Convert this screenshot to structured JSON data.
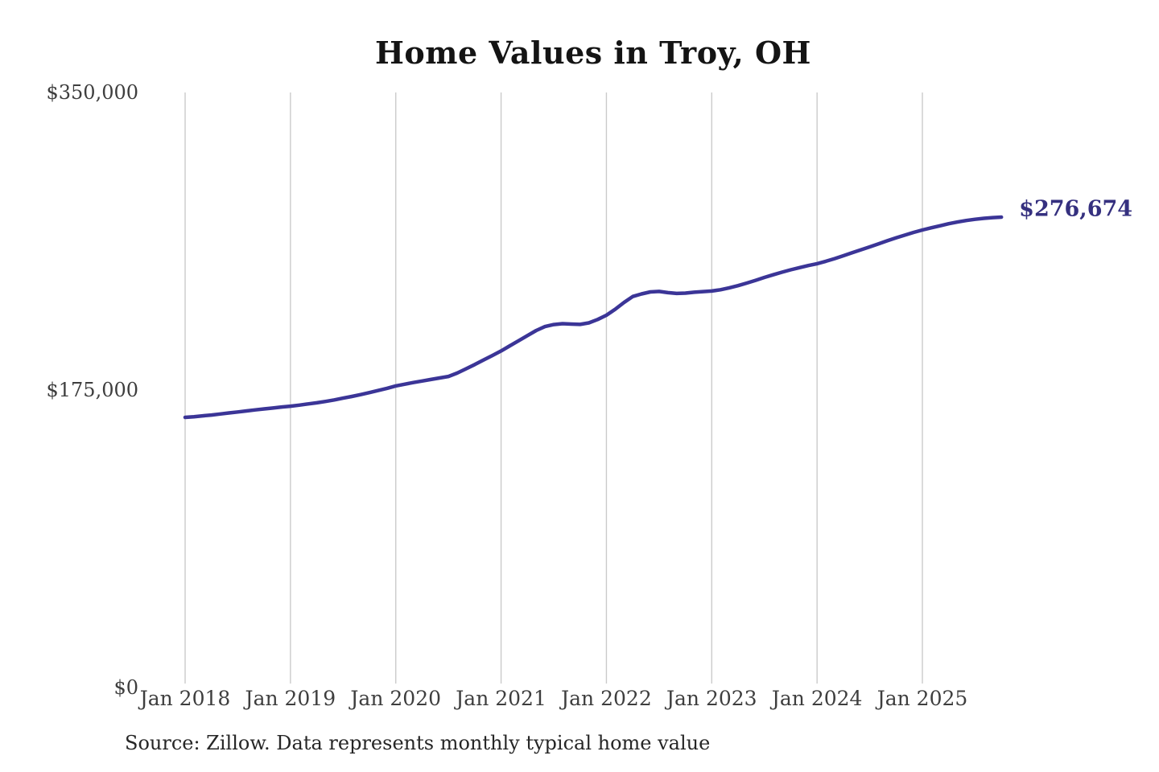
{
  "chart": {
    "title": "Home Values in Troy, OH",
    "source_note": "Source: Zillow. Data represents monthly typical home value",
    "end_value_label": "$276,674",
    "colors": {
      "line": "#3b3597",
      "end_label": "#35307f",
      "gridline": "#cbcbcb",
      "title_text": "#141414",
      "axis_text": "#3e3e3e",
      "source_text": "#262626",
      "background": "#ffffff"
    }
  },
  "chart_data": {
    "type": "line",
    "title": "Home Values in Troy, OH",
    "series_name": "Monthly typical home value (USD)",
    "legend": "none",
    "grid": "vertical-only",
    "ylim": [
      0,
      350000
    ],
    "y_ticks": [
      {
        "label": "$0",
        "value": 0
      },
      {
        "label": "$175,000",
        "value": 175000
      },
      {
        "label": "$350,000",
        "value": 350000
      }
    ],
    "x_ticks": [
      "Jan 2018",
      "Jan 2019",
      "Jan 2020",
      "Jan 2021",
      "Jan 2022",
      "Jan 2023",
      "Jan 2024",
      "Jan 2025"
    ],
    "end_label": "$276,674",
    "x": [
      "2018-01",
      "2018-02",
      "2018-03",
      "2018-04",
      "2018-05",
      "2018-06",
      "2018-07",
      "2018-08",
      "2018-09",
      "2018-10",
      "2018-11",
      "2018-12",
      "2019-01",
      "2019-02",
      "2019-03",
      "2019-04",
      "2019-05",
      "2019-06",
      "2019-07",
      "2019-08",
      "2019-09",
      "2019-10",
      "2019-11",
      "2019-12",
      "2020-01",
      "2020-02",
      "2020-03",
      "2020-04",
      "2020-05",
      "2020-06",
      "2020-07",
      "2020-08",
      "2020-09",
      "2020-10",
      "2020-11",
      "2020-12",
      "2021-01",
      "2021-02",
      "2021-03",
      "2021-04",
      "2021-05",
      "2021-06",
      "2021-07",
      "2021-08",
      "2021-09",
      "2021-10",
      "2021-11",
      "2021-12",
      "2022-01",
      "2022-02",
      "2022-03",
      "2022-04",
      "2022-05",
      "2022-06",
      "2022-07",
      "2022-08",
      "2022-09",
      "2022-10",
      "2022-11",
      "2022-12",
      "2023-01",
      "2023-02",
      "2023-03",
      "2023-04",
      "2023-05",
      "2023-06",
      "2023-07",
      "2023-08",
      "2023-09",
      "2023-10",
      "2023-11",
      "2023-12",
      "2024-01",
      "2024-02",
      "2024-03",
      "2024-04",
      "2024-05",
      "2024-06",
      "2024-07",
      "2024-08",
      "2024-09",
      "2024-10",
      "2024-11",
      "2024-12",
      "2025-01",
      "2025-02",
      "2025-03",
      "2025-04",
      "2025-05",
      "2025-06",
      "2025-07",
      "2025-08",
      "2025-09",
      "2025-10"
    ],
    "values": [
      158900,
      159300,
      159800,
      160300,
      160900,
      161500,
      162100,
      162700,
      163300,
      163900,
      164400,
      165000,
      165500,
      166100,
      166800,
      167500,
      168300,
      169200,
      170200,
      171200,
      172300,
      173500,
      174700,
      176000,
      177400,
      178400,
      179400,
      180300,
      181200,
      182100,
      183000,
      185000,
      187500,
      190000,
      192700,
      195300,
      198000,
      201000,
      204000,
      207000,
      210000,
      212300,
      213500,
      214000,
      213800,
      213600,
      214500,
      216500,
      219000,
      222500,
      226500,
      230000,
      231500,
      232700,
      233000,
      232300,
      231800,
      232000,
      232500,
      232900,
      233200,
      234000,
      235100,
      236400,
      237900,
      239500,
      241200,
      242800,
      244300,
      245700,
      247000,
      248200,
      249300,
      250700,
      252300,
      254000,
      255800,
      257500,
      259200,
      261000,
      262800,
      264500,
      266100,
      267700,
      269100,
      270400,
      271600,
      272800,
      273800,
      274700,
      275400,
      276000,
      276400,
      276674
    ]
  }
}
